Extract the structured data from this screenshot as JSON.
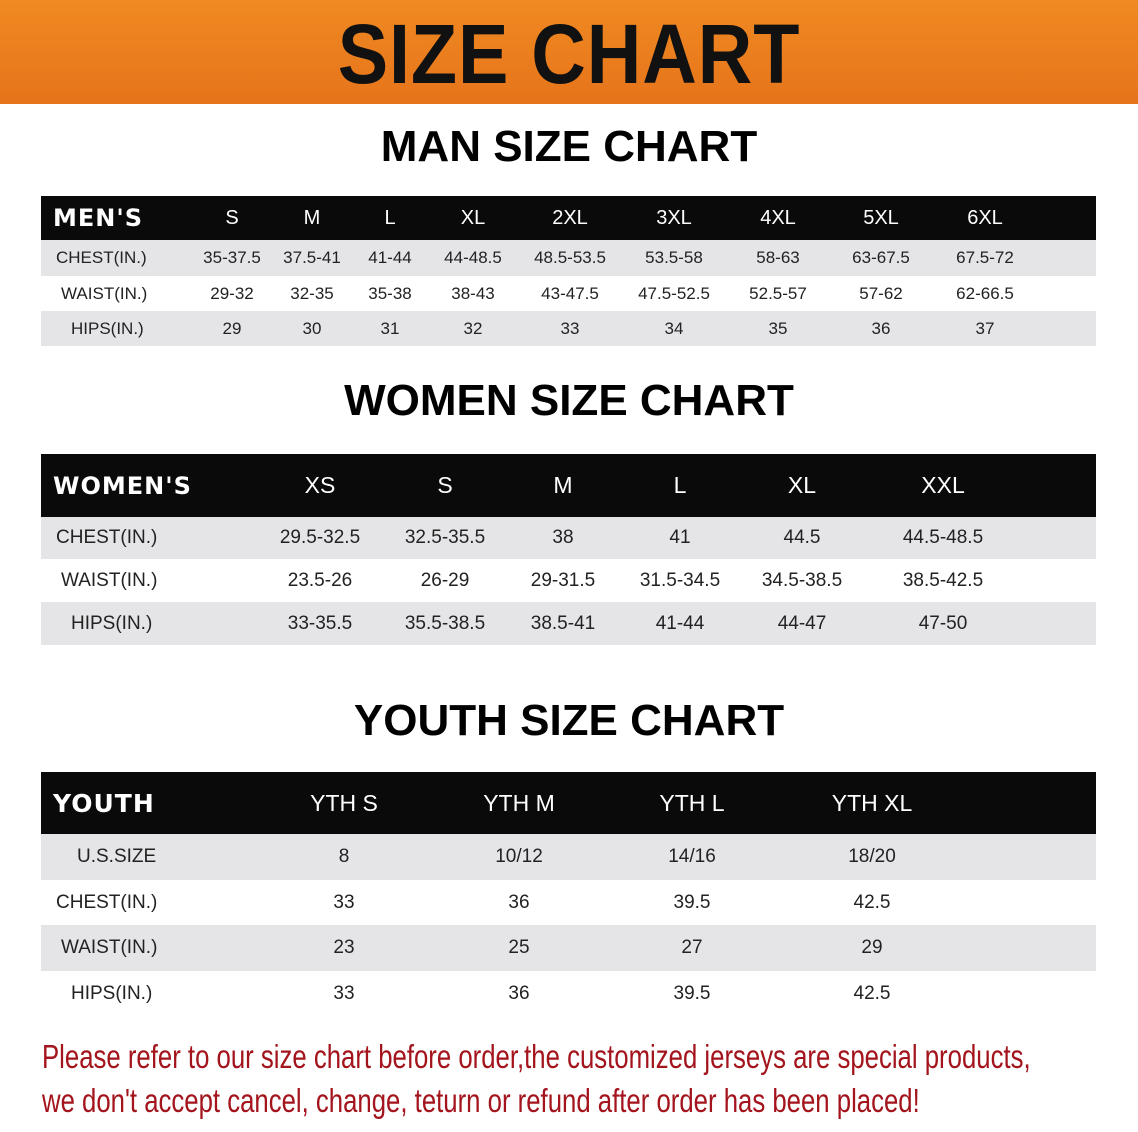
{
  "banner": {
    "title": "SIZE CHART",
    "color": "#e97b1e"
  },
  "men": {
    "title": "MAN SIZE CHART",
    "header": [
      "MEN'S",
      "S",
      "M",
      "L",
      "XL",
      "2XL",
      "3XL",
      "4XL",
      "5XL",
      "6XL"
    ],
    "rows": [
      [
        "CHEST(IN.)",
        "35-37.5",
        "37.5-41",
        "41-44",
        "44-48.5",
        "48.5-53.5",
        "53.5-58",
        "58-63",
        "63-67.5",
        "67.5-72"
      ],
      [
        "WAIST(IN.)",
        "29-32",
        "32-35",
        "35-38",
        "38-43",
        "43-47.5",
        "47.5-52.5",
        "52.5-57",
        "57-62",
        "62-66.5"
      ],
      [
        "HIPS(IN.)",
        "29",
        "30",
        "31",
        "32",
        "33",
        "34",
        "35",
        "36",
        "37"
      ]
    ]
  },
  "women": {
    "title": "WOMEN SIZE CHART",
    "header": [
      "WOMEN'S",
      "XS",
      "S",
      "M",
      "L",
      "XL",
      "XXL"
    ],
    "rows": [
      [
        "CHEST(IN.)",
        "29.5-32.5",
        "32.5-35.5",
        "38",
        "41",
        "44.5",
        "44.5-48.5"
      ],
      [
        "WAIST(IN.)",
        "23.5-26",
        "26-29",
        "29-31.5",
        "31.5-34.5",
        "34.5-38.5",
        "38.5-42.5"
      ],
      [
        "HIPS(IN.)",
        "33-35.5",
        "35.5-38.5",
        "38.5-41",
        "41-44",
        "44-47",
        "47-50"
      ]
    ]
  },
  "youth": {
    "title": "YOUTH SIZE CHART",
    "header": [
      "YOUTH",
      "YTH S",
      "YTH M",
      "YTH L",
      "YTH XL"
    ],
    "rows": [
      [
        "U.S.SIZE",
        "8",
        "10/12",
        "14/16",
        "18/20"
      ],
      [
        "CHEST(IN.)",
        "33",
        "36",
        "39.5",
        "42.5"
      ],
      [
        "WAIST(IN.)",
        "23",
        "25",
        "27",
        "29"
      ],
      [
        "HIPS(IN.)",
        "33",
        "36",
        "39.5",
        "42.5"
      ]
    ]
  },
  "note": {
    "line1": "Please refer to our size chart before order,the customized jerseys are special products,",
    "line2": "we don't accept cancel, change, teturn or refund after order has been placed!",
    "color": "#a3141c"
  }
}
